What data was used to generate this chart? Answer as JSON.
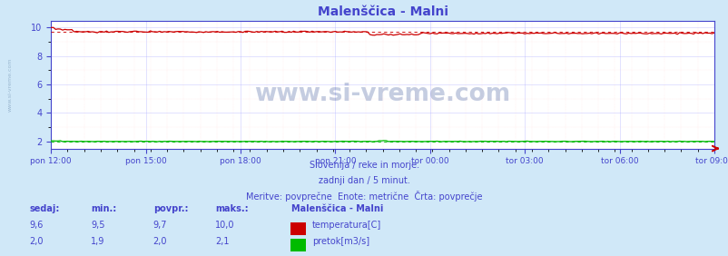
{
  "title": "Malenščica - Malni",
  "bg_color": "#d0e8f8",
  "plot_bg_color": "#ffffff",
  "grid_color_major": "#aaaaff",
  "grid_color_minor": "#ffcccc",
  "title_color": "#4444cc",
  "axis_color": "#4444cc",
  "tick_label_color": "#4444cc",
  "x_labels": [
    "pon 12:00",
    "pon 15:00",
    "pon 18:00",
    "pon 21:00",
    "tor 00:00",
    "tor 03:00",
    "tor 06:00",
    "tor 09:00"
  ],
  "y_ticks": [
    2,
    4,
    6,
    8,
    10
  ],
  "ylim": [
    1.5,
    10.5
  ],
  "n_points": 288,
  "temp_color": "#cc0000",
  "flow_color": "#00bb00",
  "watermark": "www.si-vreme.com",
  "watermark_color": "#1a3a8a",
  "watermark_alpha": 0.25,
  "subtitle1": "Slovenija / reke in morje.",
  "subtitle2": "zadnji dan / 5 minut.",
  "subtitle3": "Meritve: povprečne  Enote: metrične  Črta: povprečje",
  "subtitle_color": "#4444cc",
  "legend_title": "Malenščica - Malni",
  "legend_items": [
    "temperatura[C]",
    "pretok[m3/s]"
  ],
  "legend_colors": [
    "#cc0000",
    "#00bb00"
  ],
  "table_headers": [
    "sedaj:",
    "min.:",
    "povpr.:",
    "maks.:"
  ],
  "table_temp": [
    "9,6",
    "9,5",
    "9,7",
    "10,0"
  ],
  "table_flow": [
    "2,0",
    "1,9",
    "2,0",
    "2,1"
  ],
  "table_color": "#4444cc",
  "ylabel_text": "www.si-vreme.com",
  "ylabel_color": "#6688aa",
  "ylabel_alpha": 0.5
}
